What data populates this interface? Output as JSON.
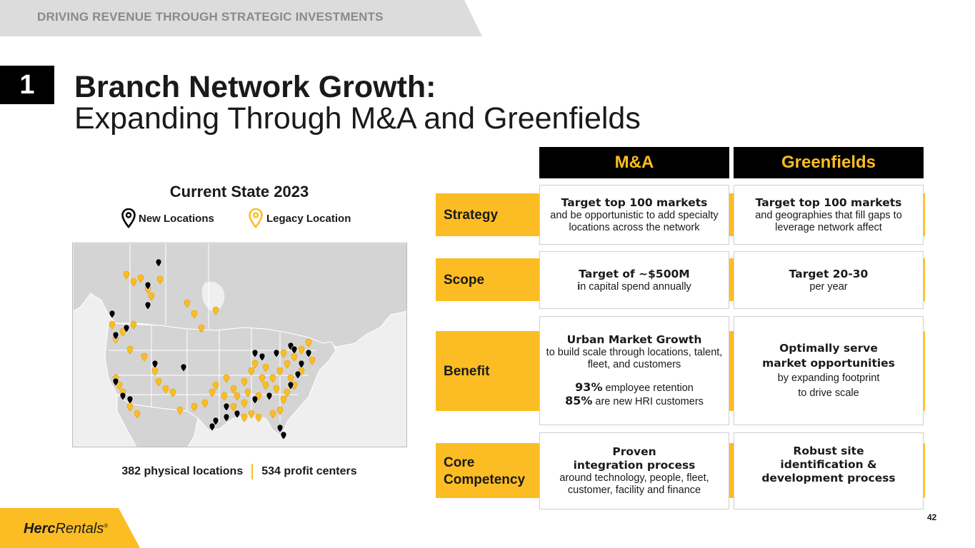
{
  "banner": {
    "text": "DRIVING REVENUE THROUGH STRATEGIC INVESTMENTS"
  },
  "section_number": "1",
  "title": {
    "line1": "Branch Network Growth:",
    "line2": "Expanding Through M&A and Greenfields"
  },
  "map": {
    "title": "Current State 2023",
    "legend": {
      "new_label": "New Locations",
      "legacy_label": "Legacy Location",
      "new_color": "#000000",
      "legacy_color": "#fbbd23",
      "new_icon": "pin-outline-icon",
      "legacy_icon": "pin-outline-icon"
    },
    "stats": {
      "physical": "382 physical locations",
      "profit": "534 profit centers"
    }
  },
  "table": {
    "columns": [
      "M&A",
      "Greenfields"
    ],
    "rows": [
      {
        "label": "Strategy",
        "ma": {
          "bold": "Target top 100 markets",
          "text": "and be opportunistic to add specialty locations across the network"
        },
        "gf": {
          "bold": "Target top 100 markets",
          "text": "and geographies that fill gaps to leverage network affect"
        }
      },
      {
        "label": "Scope",
        "ma": {
          "bold": "Target of ~$500M",
          "text_lead": "i",
          "text": "n capital spend annually"
        },
        "gf": {
          "bold": "Target 20-30",
          "text": "per year"
        }
      },
      {
        "label": "Benefit",
        "ma": {
          "bold": "Urban Market Growth",
          "text": "to build scale through locations, talent, fleet, and customers",
          "stat1_num": "93%",
          "stat1_text": " employee retention",
          "stat2_num": "85%",
          "stat2_text": " are new HRI customers"
        },
        "gf": {
          "bold1": "Optimally serve",
          "bold2": "market opportunities",
          "text1": "by expanding footprint",
          "text2": "to drive scale"
        }
      },
      {
        "label_line1": "Core",
        "label_line2": "Competency",
        "ma": {
          "bold1": "Proven",
          "bold2": "integration process",
          "text": "around technology, people, fleet, customer, facility and finance"
        },
        "gf": {
          "bold1": "Robust site",
          "bold2": "identification &",
          "bold3": "development process"
        }
      }
    ]
  },
  "footer": {
    "logo_herc": "Herc",
    "logo_rentals": "Rentals",
    "logo_mark": "®",
    "page_number": "42"
  },
  "colors": {
    "accent": "#fbbd23",
    "dark": "#000000",
    "banner_gray": "#dcdcdc"
  }
}
